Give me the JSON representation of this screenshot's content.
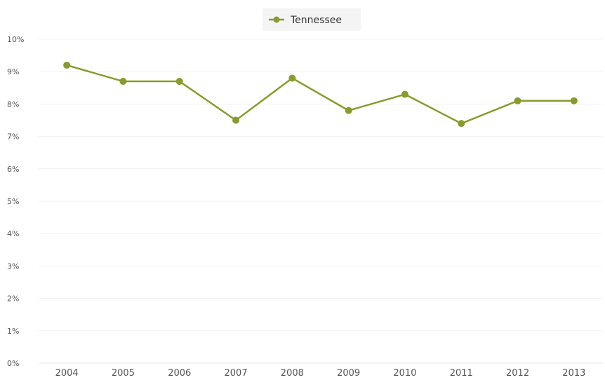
{
  "chart_data": {
    "type": "line",
    "x": [
      "2004",
      "2005",
      "2006",
      "2007",
      "2008",
      "2009",
      "2010",
      "2011",
      "2012",
      "2013"
    ],
    "series": [
      {
        "name": "Tennessee",
        "values": [
          9.2,
          8.7,
          8.7,
          7.5,
          8.8,
          7.8,
          8.3,
          7.4,
          8.1,
          8.1
        ]
      }
    ],
    "yticks": [
      "0%",
      "1%",
      "2%",
      "3%",
      "4%",
      "5%",
      "6%",
      "7%",
      "8%",
      "9%",
      "10%"
    ],
    "ylim": [
      0,
      10
    ],
    "title": "",
    "xlabel": "",
    "ylabel": "",
    "grid": true,
    "legend_position": "top-center",
    "colors": {
      "series": "#8a9a2c",
      "grid": "#f1f1f1",
      "legend_background": "#f4f4f4"
    }
  }
}
